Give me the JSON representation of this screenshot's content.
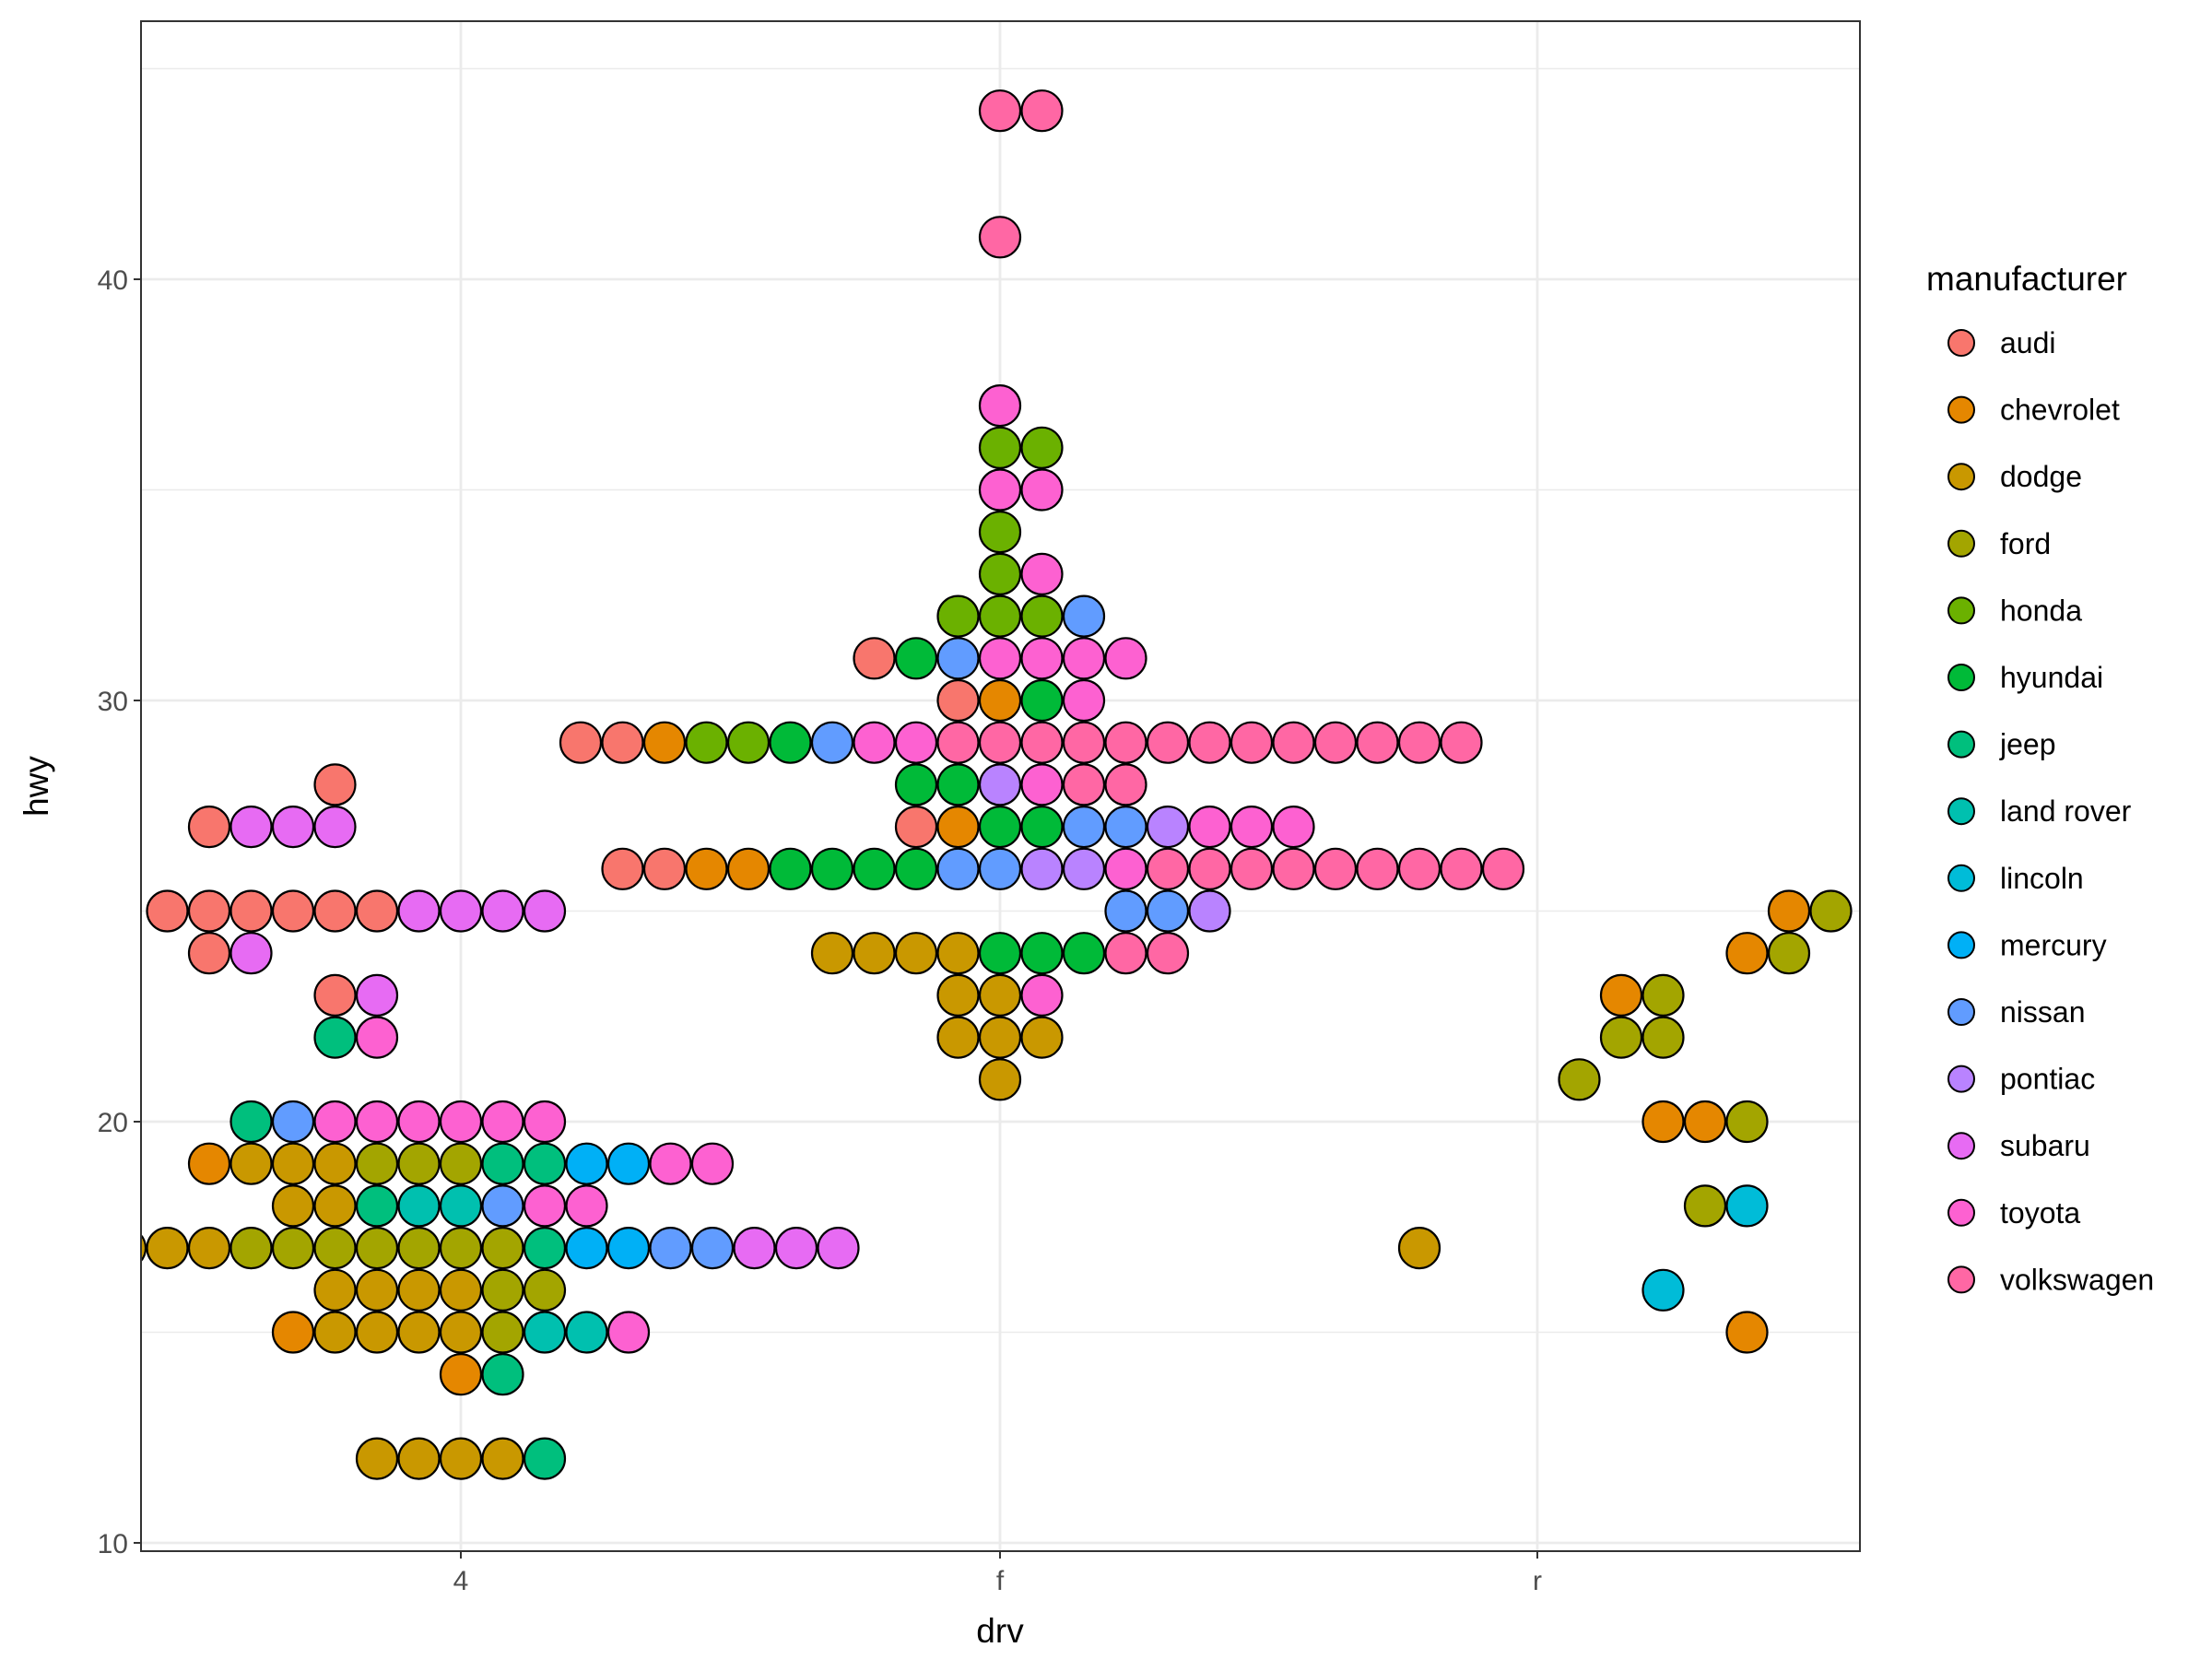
{
  "chart_data": {
    "type": "scatter",
    "subtype": "beeswarm",
    "title": "",
    "xlabel": "drv",
    "ylabel": "hwy",
    "x_categories": [
      "4",
      "f",
      "r"
    ],
    "y_ticks": [
      10,
      20,
      30,
      40
    ],
    "ylim": [
      10,
      45
    ],
    "grid": true,
    "legend": {
      "title": "manufacturer",
      "placement": "right",
      "entries": [
        {
          "name": "audi",
          "color": "#F8766D"
        },
        {
          "name": "chevrolet",
          "color": "#E58700"
        },
        {
          "name": "dodge",
          "color": "#C99800"
        },
        {
          "name": "ford",
          "color": "#A3A500"
        },
        {
          "name": "honda",
          "color": "#6BB100"
        },
        {
          "name": "hyundai",
          "color": "#00BA38"
        },
        {
          "name": "jeep",
          "color": "#00BF7D"
        },
        {
          "name": "land rover",
          "color": "#00C0AF"
        },
        {
          "name": "lincoln",
          "color": "#00BCD8"
        },
        {
          "name": "mercury",
          "color": "#00B0F6"
        },
        {
          "name": "nissan",
          "color": "#619CFF"
        },
        {
          "name": "pontiac",
          "color": "#B983FF"
        },
        {
          "name": "subaru",
          "color": "#E76BF3"
        },
        {
          "name": "toyota",
          "color": "#FD61D1"
        },
        {
          "name": "volkswagen",
          "color": "#FF67A4"
        }
      ]
    },
    "groups": [
      {
        "drv": "4",
        "rows": [
          {
            "hwy": 28,
            "cols": [
              -3
            ],
            "makers": [
              "audi"
            ]
          },
          {
            "hwy": 27,
            "cols": [
              -6,
              -5,
              -4,
              -3
            ],
            "makers": [
              "audi",
              "subaru",
              "subaru",
              "subaru"
            ]
          },
          {
            "hwy": 25,
            "cols": [
              -7,
              -6,
              -5,
              -4,
              -3,
              -2,
              -1,
              0,
              1,
              2
            ],
            "makers": [
              "audi",
              "audi",
              "audi",
              "audi",
              "audi",
              "audi",
              "subaru",
              "subaru",
              "subaru",
              "subaru"
            ]
          },
          {
            "hwy": 24,
            "cols": [
              -6,
              -5
            ],
            "makers": [
              "audi",
              "subaru"
            ]
          },
          {
            "hwy": 23,
            "cols": [
              -3,
              -2
            ],
            "makers": [
              "audi",
              "subaru"
            ]
          },
          {
            "hwy": 22,
            "cols": [
              -3,
              -2
            ],
            "makers": [
              "jeep",
              "toyota"
            ]
          },
          {
            "hwy": 20,
            "cols": [
              -5,
              -4,
              -3,
              -2,
              -1,
              0,
              1,
              2
            ],
            "makers": [
              "jeep",
              "nissan",
              "toyota",
              "toyota",
              "toyota",
              "toyota",
              "toyota",
              "toyota"
            ]
          },
          {
            "hwy": 19,
            "cols": [
              -6,
              -5,
              -4,
              -3,
              -2,
              -1,
              0,
              1,
              2,
              3,
              4,
              5,
              6
            ],
            "makers": [
              "chevrolet",
              "dodge",
              "dodge",
              "dodge",
              "ford",
              "ford",
              "ford",
              "jeep",
              "jeep",
              "mercury",
              "mercury",
              "toyota",
              "toyota"
            ]
          },
          {
            "hwy": 18,
            "cols": [
              -4,
              -3,
              -2,
              -1,
              0,
              1,
              2,
              3
            ],
            "makers": [
              "dodge",
              "dodge",
              "jeep",
              "land rover",
              "land rover",
              "nissan",
              "toyota",
              "toyota"
            ]
          },
          {
            "hwy": 17,
            "cols": [
              -8,
              -7,
              -6,
              -5,
              -4,
              -3,
              -2,
              -1,
              0,
              1,
              2,
              3,
              4,
              5,
              6,
              7,
              8,
              9
            ],
            "makers": [
              "dodge",
              "dodge",
              "dodge",
              "ford",
              "ford",
              "ford",
              "ford",
              "ford",
              "ford",
              "ford",
              "jeep",
              "mercury",
              "mercury",
              "nissan",
              "nissan",
              "subaru",
              "subaru",
              "subaru"
            ]
          },
          {
            "hwy": 16,
            "cols": [
              -3,
              -2,
              -1,
              0,
              1,
              2
            ],
            "makers": [
              "dodge",
              "dodge",
              "dodge",
              "dodge",
              "ford",
              "ford"
            ]
          },
          {
            "hwy": 15,
            "cols": [
              -4,
              -3,
              -2,
              -1,
              0,
              1,
              2,
              3,
              4
            ],
            "makers": [
              "chevrolet",
              "dodge",
              "dodge",
              "dodge",
              "dodge",
              "ford",
              "land rover",
              "land rover",
              "toyota"
            ]
          },
          {
            "hwy": 14,
            "cols": [
              0,
              1
            ],
            "makers": [
              "chevrolet",
              "jeep"
            ]
          },
          {
            "hwy": 12,
            "cols": [
              -2,
              -1,
              0,
              1,
              2
            ],
            "makers": [
              "dodge",
              "dodge",
              "dodge",
              "dodge",
              "jeep"
            ]
          }
        ]
      },
      {
        "drv": "f",
        "rows": [
          {
            "hwy": 44,
            "cols": [
              0,
              1
            ],
            "makers": [
              "volkswagen",
              "volkswagen"
            ]
          },
          {
            "hwy": 41,
            "cols": [
              0
            ],
            "makers": [
              "volkswagen"
            ]
          },
          {
            "hwy": 37,
            "cols": [
              0
            ],
            "makers": [
              "toyota"
            ]
          },
          {
            "hwy": 36,
            "cols": [
              0,
              1
            ],
            "makers": [
              "honda",
              "honda"
            ]
          },
          {
            "hwy": 35,
            "cols": [
              0,
              1
            ],
            "makers": [
              "toyota",
              "toyota"
            ]
          },
          {
            "hwy": 34,
            "cols": [
              0
            ],
            "makers": [
              "honda"
            ]
          },
          {
            "hwy": 33,
            "cols": [
              0,
              1
            ],
            "makers": [
              "honda",
              "toyota"
            ]
          },
          {
            "hwy": 32,
            "cols": [
              -1,
              0,
              1,
              2
            ],
            "makers": [
              "honda",
              "honda",
              "honda",
              "nissan"
            ]
          },
          {
            "hwy": 31,
            "cols": [
              -3,
              -2,
              -1,
              0,
              1,
              2,
              3
            ],
            "makers": [
              "audi",
              "hyundai",
              "nissan",
              "toyota",
              "toyota",
              "toyota",
              "toyota"
            ]
          },
          {
            "hwy": 30,
            "cols": [
              -1,
              0,
              1,
              2
            ],
            "makers": [
              "audi",
              "chevrolet",
              "hyundai",
              "toyota"
            ]
          },
          {
            "hwy": 29,
            "cols": [
              -10,
              -9,
              -8,
              -7,
              -6,
              -5,
              -4,
              -3,
              -2,
              -1,
              0,
              1,
              2,
              3,
              4,
              5,
              6,
              7,
              8,
              9,
              10,
              11
            ],
            "makers": [
              "audi",
              "audi",
              "chevrolet",
              "honda",
              "honda",
              "hyundai",
              "nissan",
              "toyota",
              "toyota",
              "volkswagen",
              "volkswagen",
              "volkswagen",
              "volkswagen",
              "volkswagen",
              "volkswagen",
              "volkswagen",
              "volkswagen",
              "volkswagen",
              "volkswagen",
              "volkswagen",
              "volkswagen",
              "volkswagen"
            ]
          },
          {
            "hwy": 28,
            "cols": [
              -2,
              -1,
              0,
              1,
              2,
              3
            ],
            "makers": [
              "hyundai",
              "hyundai",
              "pontiac",
              "toyota",
              "volkswagen",
              "volkswagen"
            ]
          },
          {
            "hwy": 27,
            "cols": [
              -2,
              -1,
              0,
              1,
              2,
              3,
              4,
              5,
              6,
              7
            ],
            "makers": [
              "audi",
              "chevrolet",
              "hyundai",
              "hyundai",
              "nissan",
              "nissan",
              "pontiac",
              "toyota",
              "toyota",
              "toyota"
            ]
          },
          {
            "hwy": 26,
            "cols": [
              -9,
              -8,
              -7,
              -6,
              -5,
              -4,
              -3,
              -2,
              -1,
              0,
              1,
              2,
              3,
              4,
              5,
              6,
              7,
              8,
              9,
              10,
              11,
              12
            ],
            "makers": [
              "audi",
              "audi",
              "chevrolet",
              "chevrolet",
              "hyundai",
              "hyundai",
              "hyundai",
              "hyundai",
              "nissan",
              "nissan",
              "pontiac",
              "pontiac",
              "toyota",
              "volkswagen",
              "volkswagen",
              "volkswagen",
              "volkswagen",
              "volkswagen",
              "volkswagen",
              "volkswagen",
              "volkswagen",
              "volkswagen"
            ]
          },
          {
            "hwy": 25,
            "cols": [
              3,
              4,
              5
            ],
            "makers": [
              "nissan",
              "nissan",
              "pontiac"
            ]
          },
          {
            "hwy": 24,
            "cols": [
              -4,
              -3,
              -2,
              -1,
              0,
              1,
              2,
              3,
              4
            ],
            "makers": [
              "dodge",
              "dodge",
              "dodge",
              "dodge",
              "hyundai",
              "hyundai",
              "hyundai",
              "volkswagen",
              "volkswagen"
            ]
          },
          {
            "hwy": 23,
            "cols": [
              -1,
              0,
              1
            ],
            "makers": [
              "dodge",
              "dodge",
              "toyota"
            ]
          },
          {
            "hwy": 22,
            "cols": [
              -1,
              0,
              1
            ],
            "makers": [
              "dodge",
              "dodge",
              "dodge"
            ]
          },
          {
            "hwy": 21,
            "cols": [
              0
            ],
            "makers": [
              "dodge"
            ]
          },
          {
            "hwy": 17,
            "cols": [
              10
            ],
            "makers": [
              "dodge"
            ]
          }
        ]
      },
      {
        "drv": "r",
        "rows": [
          {
            "hwy": 25,
            "cols": [
              6,
              7
            ],
            "makers": [
              "chevrolet",
              "ford"
            ]
          },
          {
            "hwy": 24,
            "cols": [
              5,
              6
            ],
            "makers": [
              "chevrolet",
              "ford"
            ]
          },
          {
            "hwy": 23,
            "cols": [
              2,
              3
            ],
            "makers": [
              "chevrolet",
              "ford"
            ]
          },
          {
            "hwy": 22,
            "cols": [
              2,
              3
            ],
            "makers": [
              "ford",
              "ford"
            ]
          },
          {
            "hwy": 21,
            "cols": [
              1
            ],
            "makers": [
              "ford"
            ]
          },
          {
            "hwy": 20,
            "cols": [
              3,
              4,
              5
            ],
            "makers": [
              "chevrolet",
              "chevrolet",
              "ford"
            ]
          },
          {
            "hwy": 18,
            "cols": [
              4,
              5
            ],
            "makers": [
              "ford",
              "lincoln"
            ]
          },
          {
            "hwy": 16,
            "cols": [
              3
            ],
            "makers": [
              "lincoln"
            ]
          },
          {
            "hwy": 15,
            "cols": [
              5
            ],
            "makers": [
              "chevrolet"
            ]
          }
        ]
      }
    ]
  }
}
